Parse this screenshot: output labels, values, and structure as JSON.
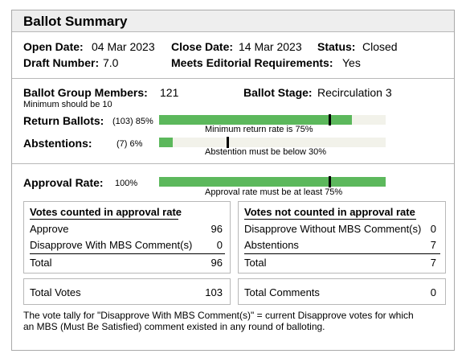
{
  "title": "Ballot Summary",
  "info": {
    "open_date_label": "Open Date:",
    "open_date": "04 Mar 2023",
    "close_date_label": "Close Date:",
    "close_date": "14 Mar 2023",
    "status_label": "Status:",
    "status": "Closed",
    "draft_label": "Draft Number:",
    "draft": "7.0",
    "editorial_label": "Meets Editorial Requirements:",
    "editorial": "Yes"
  },
  "group": {
    "members_label": "Ballot Group Members:",
    "members": "121",
    "members_note": "Minimum should be 10",
    "stage_label": "Ballot Stage:",
    "stage": "Recirculation 3"
  },
  "return_ballots": {
    "label": "Return Ballots:",
    "value": "(103) 85%",
    "fill": 0.85,
    "threshold": 0.75,
    "note": "Minimum return rate is 75%"
  },
  "abstentions": {
    "label": "Abstentions:",
    "value": "(7) 6%",
    "fill": 0.06,
    "threshold": 0.3,
    "note": "Abstention must be below 30%"
  },
  "approval": {
    "label": "Approval Rate:",
    "value": "100%",
    "fill": 1.0,
    "threshold": 0.75,
    "note": "Approval rate must be at least 75%"
  },
  "counted": {
    "heading": "Votes counted in approval rate",
    "rows": [
      {
        "label": "Approve",
        "value": "96"
      },
      {
        "label": "Disapprove With MBS Comment(s)",
        "value": "0"
      }
    ],
    "total_label": "Total",
    "total": "96"
  },
  "not_counted": {
    "heading": "Votes not counted in approval rate",
    "rows": [
      {
        "label": "Disapprove Without MBS Comment(s)",
        "value": "0"
      },
      {
        "label": "Abstentions",
        "value": "7"
      }
    ],
    "total_label": "Total",
    "total": "7"
  },
  "totals": {
    "votes_label": "Total Votes",
    "votes": "103",
    "comments_label": "Total Comments",
    "comments": "0"
  },
  "footnote_1": "The vote tally for \"Disapprove With MBS Comment(s)\" = current Disapprove votes for which",
  "footnote_2": "an MBS (Must Be Satisfied) comment existed in any round of balloting.",
  "colors": {
    "bar_fill": "#5cb85c",
    "bar_track": "#f2f2ea",
    "marker": "#000000"
  }
}
